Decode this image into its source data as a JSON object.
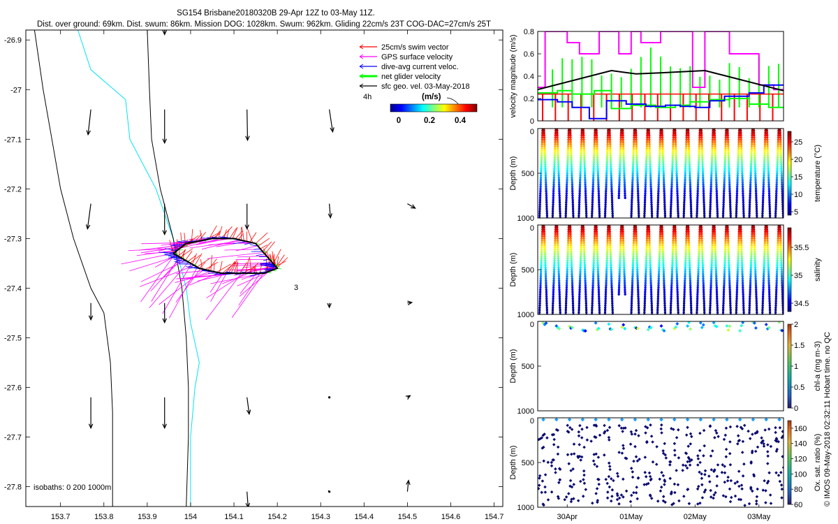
{
  "figure": {
    "title_line1": "SG154 Brisbane20180320B 29-Apr 12Z to 03-May 11Z.",
    "title_line2": "Dist. over ground: 69km. Dist. swum: 86km. Mission DOG: 1028km. Swum: 962km. Gliding 22cm/s 23T COG-DAC=27cm/s 25T",
    "credit": "© IMOS 09-May-2018 02:32:11 Hobart time. no QC"
  },
  "chart_data": [
    {
      "type": "scatter",
      "name": "map",
      "xlim": [
        153.62,
        154.72
      ],
      "ylim": [
        -27.84,
        -26.88
      ],
      "x_ticks": [
        153.7,
        153.8,
        153.9,
        154,
        154.1,
        154.2,
        154.3,
        154.4,
        154.5,
        154.6,
        154.7
      ],
      "x_tick_labels": [
        "153.7",
        "153.8",
        "153.9",
        "154",
        "154.1",
        "154.2",
        "154.3",
        "154.4",
        "154.5",
        "154.6",
        "154.7"
      ],
      "y_ticks": [
        -26.9,
        -27,
        -27.1,
        -27.2,
        -27.3,
        -27.4,
        -27.5,
        -27.6,
        -27.7,
        -27.8
      ],
      "y_tick_labels": [
        "-26.9",
        "-27",
        "-27.1",
        "-27.2",
        "-27.3",
        "-27.4",
        "-27.5",
        "-27.6",
        "-27.7",
        "-27.8"
      ],
      "legend": {
        "items": [
          {
            "label": "25cm/s swim vector",
            "color": "#ff0000"
          },
          {
            "label": "GPS surface velocity",
            "color": "#ff00ff"
          },
          {
            "label": "dive-avg current veloc.",
            "color": "#0000ff"
          },
          {
            "label": "net glider velocity",
            "color": "#00ff00"
          },
          {
            "label": "sfc geo. vel. 03-May-2018",
            "color": "#000000"
          }
        ],
        "placement": "top-right"
      },
      "colorbar": {
        "title": "(m/s)",
        "ticks": [
          "0",
          "0.2",
          "0.4"
        ],
        "ref_label": "4h"
      },
      "isobath_label": "isobaths: 0   200  1000m",
      "annotation_3": "3",
      "isobath_0m": [
        [
          153.64,
          -26.88
        ],
        [
          153.66,
          -27.0
        ],
        [
          153.68,
          -27.1
        ],
        [
          153.7,
          -27.2
        ],
        [
          153.73,
          -27.3
        ],
        [
          153.77,
          -27.4
        ],
        [
          153.8,
          -27.45
        ],
        [
          153.815,
          -27.55
        ],
        [
          153.82,
          -27.65
        ],
        [
          153.82,
          -27.75
        ],
        [
          153.82,
          -27.84
        ]
      ],
      "isobath_200m": [
        [
          153.9,
          -26.88
        ],
        [
          153.905,
          -27.0
        ],
        [
          153.91,
          -27.1
        ],
        [
          153.93,
          -27.2
        ],
        [
          153.96,
          -27.3
        ],
        [
          153.98,
          -27.4
        ],
        [
          153.99,
          -27.5
        ],
        [
          153.995,
          -27.6
        ],
        [
          153.995,
          -27.7
        ],
        [
          153.99,
          -27.84
        ]
      ],
      "isobath_1000m": [
        [
          153.74,
          -26.88
        ],
        [
          153.77,
          -26.96
        ],
        [
          153.85,
          -27.02
        ],
        [
          153.86,
          -27.1
        ],
        [
          153.92,
          -27.2
        ],
        [
          153.96,
          -27.3
        ],
        [
          153.99,
          -27.4
        ],
        [
          154.0,
          -27.47
        ],
        [
          154.02,
          -27.55
        ],
        [
          154.01,
          -27.6
        ],
        [
          154.0,
          -27.7
        ],
        [
          154.0,
          -27.84
        ]
      ],
      "glider_track": [
        [
          153.96,
          -27.33
        ],
        [
          153.99,
          -27.31
        ],
        [
          154.05,
          -27.3
        ],
        [
          154.1,
          -27.3
        ],
        [
          154.15,
          -27.31
        ],
        [
          154.19,
          -27.35
        ],
        [
          154.2,
          -27.36
        ],
        [
          154.17,
          -27.37
        ],
        [
          154.12,
          -27.37
        ],
        [
          154.07,
          -27.37
        ],
        [
          154.02,
          -27.36
        ],
        [
          153.98,
          -27.34
        ],
        [
          153.96,
          -27.33
        ]
      ],
      "geo_vectors": [
        {
          "lon": 153.77,
          "lat": -27.04,
          "u": -0.05,
          "v": -0.45
        },
        {
          "lon": 153.94,
          "lat": -27.04,
          "u": 0.0,
          "v": -0.6
        },
        {
          "lon": 154.13,
          "lat": -27.04,
          "u": 0.01,
          "v": -0.55
        },
        {
          "lon": 154.32,
          "lat": -27.04,
          "u": 0.06,
          "v": -0.4
        },
        {
          "lon": 153.77,
          "lat": -27.23,
          "u": -0.06,
          "v": -0.45
        },
        {
          "lon": 153.94,
          "lat": -27.23,
          "u": 0.0,
          "v": -0.55
        },
        {
          "lon": 154.13,
          "lat": -27.23,
          "u": 0.0,
          "v": -0.45
        },
        {
          "lon": 154.32,
          "lat": -27.23,
          "u": 0.02,
          "v": -0.25
        },
        {
          "lon": 154.5,
          "lat": -27.23,
          "u": 0.14,
          "v": -0.08
        },
        {
          "lon": 153.77,
          "lat": -27.43,
          "u": 0.0,
          "v": -0.3
        },
        {
          "lon": 153.94,
          "lat": -27.43,
          "u": 0.0,
          "v": -0.35
        },
        {
          "lon": 154.32,
          "lat": -27.43,
          "u": 0.0,
          "v": -0.08
        },
        {
          "lon": 154.5,
          "lat": -27.43,
          "u": 0.08,
          "v": 0.01
        },
        {
          "lon": 153.77,
          "lat": -27.62,
          "u": 0.0,
          "v": -0.55
        },
        {
          "lon": 153.94,
          "lat": -27.62,
          "u": 0.0,
          "v": -0.55
        },
        {
          "lon": 154.13,
          "lat": -27.62,
          "u": 0.04,
          "v": -0.3
        },
        {
          "lon": 154.32,
          "lat": -27.62,
          "u": 0.0,
          "v": -0.02
        },
        {
          "lon": 154.5,
          "lat": -27.62,
          "u": 0.05,
          "v": 0.03
        },
        {
          "lon": 154.13,
          "lat": -27.81,
          "u": 0.02,
          "v": -0.28
        },
        {
          "lon": 154.32,
          "lat": -27.81,
          "u": -0.02,
          "v": 0.02
        },
        {
          "lon": 154.5,
          "lat": -27.81,
          "u": 0.02,
          "v": 0.2
        },
        {
          "lon": 153.94,
          "lat": -26.88,
          "u": 0.0,
          "v": -0.08
        }
      ]
    },
    {
      "type": "line",
      "name": "velocity",
      "ylabel": "velocity magnitude (m/s)",
      "ylim": [
        0,
        0.8
      ],
      "y_ticks": [
        0,
        0.2,
        0.4,
        0.6,
        0.8
      ],
      "y_tick_labels": [
        "0",
        "0.2",
        "0.4",
        "0.6",
        "0.8"
      ],
      "xlim": [
        0,
        100
      ],
      "series": [
        {
          "name": "glider speed",
          "color": "#ff0000",
          "x": [
            0,
            100
          ],
          "values": [
            0.24,
            0.24
          ]
        },
        {
          "name": "GPS surface velocity",
          "color": "#ff00ff",
          "x": [
            0,
            3,
            3,
            12,
            12,
            17,
            17,
            25,
            25,
            33,
            33,
            38,
            38,
            42,
            42,
            50,
            50,
            56,
            56,
            63,
            63,
            68,
            68,
            78,
            78,
            90,
            90,
            96,
            96,
            100
          ],
          "values": [
            0.3,
            0.3,
            0.8,
            0.8,
            0.7,
            0.7,
            0.6,
            0.6,
            0.8,
            0.8,
            0.6,
            0.6,
            0.8,
            0.8,
            0.7,
            0.7,
            0.8,
            0.8,
            0.8,
            0.8,
            0.3,
            0.3,
            0.8,
            0.8,
            0.6,
            0.6,
            0.32,
            0.32,
            0.28,
            0.28
          ]
        },
        {
          "name": "net glider velocity",
          "color": "#00ff00",
          "x": [
            0,
            8,
            8,
            14,
            14,
            23,
            23,
            30,
            30,
            38,
            38,
            48,
            48,
            56,
            56,
            62,
            62,
            70,
            70,
            78,
            78,
            86,
            86,
            94,
            94,
            100
          ],
          "values": [
            0.25,
            0.25,
            0.27,
            0.27,
            0.24,
            0.24,
            0.27,
            0.27,
            0.11,
            0.11,
            0.14,
            0.14,
            0.12,
            0.12,
            0.14,
            0.14,
            0.17,
            0.17,
            0.19,
            0.19,
            0.2,
            0.2,
            0.15,
            0.15,
            0.12,
            0.12
          ]
        },
        {
          "name": "dive-avg current veloc.",
          "color": "#0000ff",
          "x": [
            0,
            8,
            8,
            14,
            14,
            21,
            21,
            28,
            28,
            36,
            36,
            44,
            44,
            52,
            52,
            58,
            58,
            64,
            64,
            70,
            70,
            76,
            76,
            86,
            86,
            92,
            92,
            100
          ],
          "values": [
            0.19,
            0.19,
            0.17,
            0.17,
            0.12,
            0.12,
            0.02,
            0.02,
            0.18,
            0.18,
            0.15,
            0.15,
            0.13,
            0.13,
            0.14,
            0.14,
            0.13,
            0.13,
            0.12,
            0.12,
            0.18,
            0.18,
            0.22,
            0.22,
            0.25,
            0.25,
            0.32,
            0.32
          ]
        },
        {
          "name": "sfc geo. vel.",
          "color": "#000000",
          "x": [
            0,
            30,
            40,
            50,
            68,
            100
          ],
          "values": [
            0.28,
            0.45,
            0.42,
            0.43,
            0.45,
            0.27
          ]
        }
      ]
    },
    {
      "type": "heatmap",
      "name": "temperature",
      "ylabel": "Depth (m)",
      "ylim": [
        1000,
        0
      ],
      "y_ticks": [
        0,
        500,
        1000
      ],
      "y_tick_labels": [
        "0",
        "500",
        "1000"
      ],
      "colorbar_label": "temperature (°C)",
      "clim": [
        4,
        28
      ],
      "colorbar_ticks": [
        5,
        10,
        15,
        20,
        25
      ],
      "colorbar_tick_labels": [
        "5",
        "10",
        "15",
        "20",
        "25"
      ],
      "dives": 19,
      "surface_value": 28,
      "bottom_value": 4
    },
    {
      "type": "heatmap",
      "name": "salinity",
      "ylabel": "Depth (m)",
      "ylim": [
        1000,
        0
      ],
      "y_ticks": [
        0,
        500,
        1000
      ],
      "y_tick_labels": [
        "0",
        "500",
        "1000"
      ],
      "colorbar_label": "salinity",
      "clim": [
        34.35,
        35.85
      ],
      "colorbar_ticks": [
        34.5,
        35,
        35.5
      ],
      "colorbar_tick_labels": [
        "34.5",
        "35",
        "35.5"
      ],
      "dives": 19,
      "surface_value": 35.8,
      "bottom_value": 34.4
    },
    {
      "type": "scatter",
      "name": "chl-a",
      "ylabel": "Depth (m)",
      "ylim": [
        1000,
        0
      ],
      "y_ticks": [
        0,
        500,
        1000
      ],
      "y_tick_labels": [
        "0",
        "500",
        "1000"
      ],
      "colorbar_label": "chl-a (mg m-3)",
      "clim": [
        0,
        2
      ],
      "colorbar_ticks": [
        0,
        0.5,
        1,
        1.5,
        2
      ],
      "colorbar_tick_labels": [
        "0",
        "0.5",
        "1",
        "1.5",
        "2"
      ],
      "max_depth": 120
    },
    {
      "type": "scatter",
      "name": "oxygen",
      "ylabel": "Depth (m)",
      "ylim": [
        1000,
        0
      ],
      "y_ticks": [
        0,
        500,
        1000
      ],
      "y_tick_labels": [
        "0",
        "500",
        "1000"
      ],
      "colorbar_label": "Ox. sat. ratio (%)",
      "clim": [
        60,
        170
      ],
      "colorbar_ticks": [
        60,
        80,
        100,
        120,
        140,
        160
      ],
      "colorbar_tick_labels": [
        "60",
        "80",
        "100",
        "120",
        "140",
        "160"
      ],
      "x_ticks": [
        12,
        38,
        64,
        90
      ],
      "x_tick_labels": [
        "30Apr",
        "01May",
        "02May",
        "03May"
      ]
    }
  ]
}
